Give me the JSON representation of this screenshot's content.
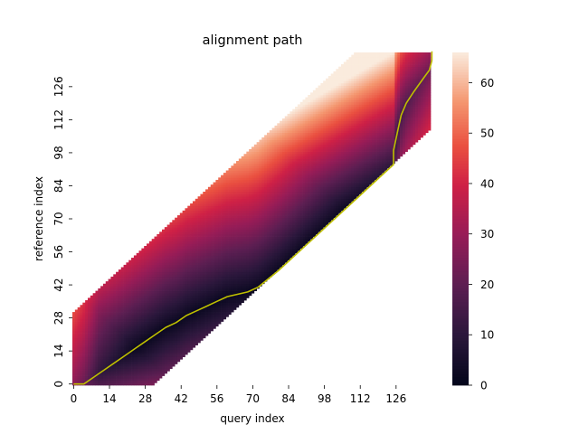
{
  "chart_data": {
    "type": "heatmap",
    "title": "alignment path",
    "xlabel": "query index",
    "ylabel": "reference index",
    "x_ticks": [
      0,
      14,
      28,
      42,
      56,
      70,
      84,
      98,
      112,
      126
    ],
    "y_ticks": [
      0,
      14,
      28,
      42,
      56,
      70,
      84,
      98,
      112,
      126
    ],
    "n_query": 140,
    "n_reference": 141,
    "band_offset": {
      "lower": -31,
      "upper": 30
    },
    "colorbar": {
      "min": 0,
      "max": 66,
      "ticks": [
        0,
        10,
        20,
        30,
        40,
        50,
        60
      ],
      "colormap": "rocket"
    },
    "cost_landmarks": [
      {
        "query": 0,
        "reference": 28,
        "value": 40
      },
      {
        "query": 0,
        "reference": 0,
        "value": 22
      },
      {
        "query": 28,
        "reference": 0,
        "value": 36
      },
      {
        "query": 50,
        "reference": 30,
        "value": 3
      },
      {
        "query": 65,
        "reference": 38,
        "value": 2
      },
      {
        "query": 70,
        "reference": 100,
        "value": 28
      },
      {
        "query": 126,
        "reference": 96,
        "value": 30
      },
      {
        "query": 110,
        "reference": 141,
        "value": 64
      }
    ],
    "path": [
      [
        0,
        0
      ],
      [
        4,
        0
      ],
      [
        8,
        3
      ],
      [
        12,
        6
      ],
      [
        16,
        9
      ],
      [
        20,
        12
      ],
      [
        24,
        15
      ],
      [
        28,
        18
      ],
      [
        32,
        21
      ],
      [
        36,
        24
      ],
      [
        40,
        26
      ],
      [
        44,
        29
      ],
      [
        48,
        31
      ],
      [
        52,
        33
      ],
      [
        56,
        35
      ],
      [
        60,
        37
      ],
      [
        64,
        38
      ],
      [
        68,
        39
      ],
      [
        72,
        41
      ],
      [
        80,
        48
      ],
      [
        90,
        58
      ],
      [
        100,
        68
      ],
      [
        110,
        78
      ],
      [
        120,
        88
      ],
      [
        125,
        93
      ],
      [
        125,
        99
      ],
      [
        126,
        104
      ],
      [
        127,
        109
      ],
      [
        128,
        114
      ],
      [
        130,
        119
      ],
      [
        133,
        124
      ],
      [
        137,
        130
      ],
      [
        139,
        133
      ],
      [
        140,
        137
      ],
      [
        140,
        141
      ]
    ],
    "path_color": "#bfbf00"
  }
}
